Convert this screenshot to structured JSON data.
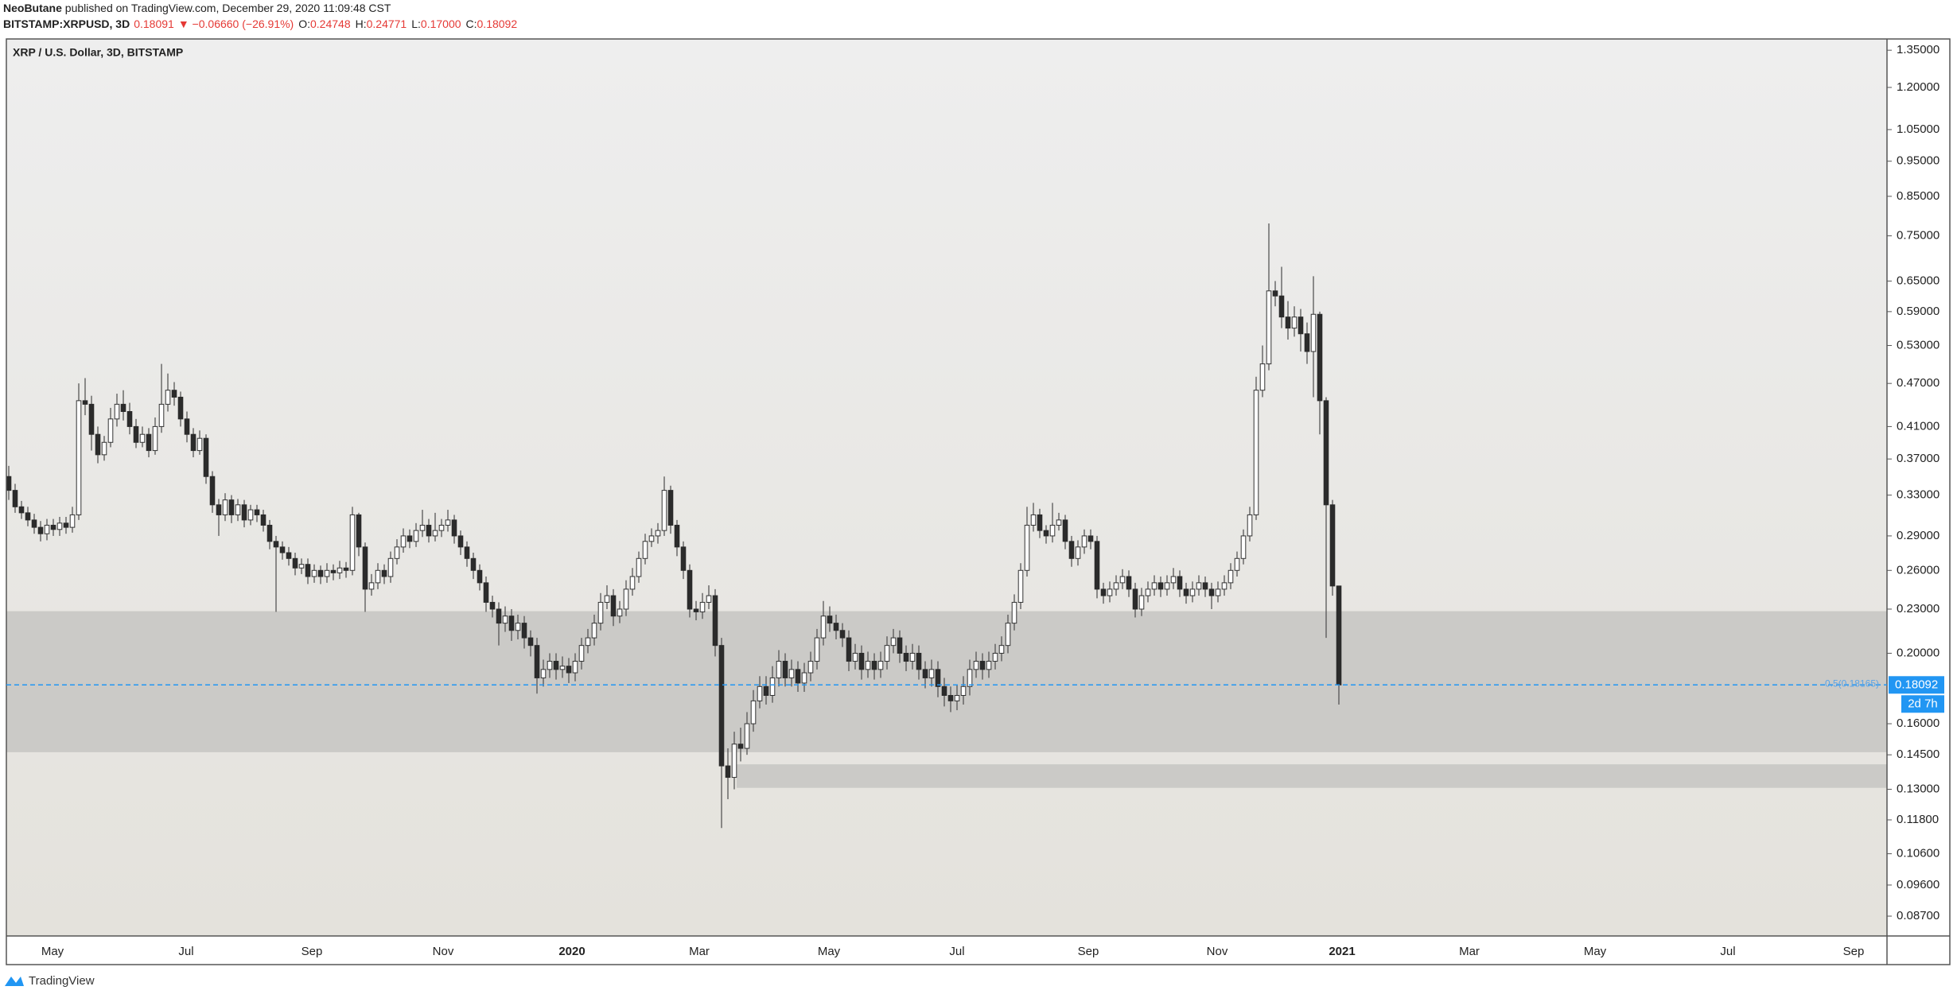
{
  "chart_data": {
    "type": "candlestick",
    "header": {
      "author": "NeoButane",
      "published": " published on TradingView.com, December 29, 2020 11:09:48 CST",
      "symbol": "BITSTAMP:XRPUSD, 3D",
      "price": "0.18091",
      "change": "▼ −0.06660 (−26.91%)",
      "ohlc": [
        {
          "k": "O:",
          "v": "0.24748"
        },
        {
          "k": "H:",
          "v": "0.24771"
        },
        {
          "k": "L:",
          "v": "0.17000"
        },
        {
          "k": "C:",
          "v": "0.18092"
        }
      ]
    },
    "title": "XRP / U.S. Dollar, 3D, BITSTAMP",
    "footer": "TradingView",
    "log_scale": true,
    "up_color": "#ffffff",
    "down_color": "#2b2b2b",
    "wick_color": "#4a4a4a",
    "zone_color": "#cbcac7",
    "ylim": [
      0.0817,
      1.399
    ],
    "yticks": [
      {
        "value": 1.35,
        "label": "1.35000"
      },
      {
        "value": 1.2,
        "label": "1.20000"
      },
      {
        "value": 1.05,
        "label": "1.05000"
      },
      {
        "value": 0.95,
        "label": "0.95000"
      },
      {
        "value": 0.85,
        "label": "0.85000"
      },
      {
        "value": 0.75,
        "label": "0.75000"
      },
      {
        "value": 0.65,
        "label": "0.65000"
      },
      {
        "value": 0.59,
        "label": "0.59000"
      },
      {
        "value": 0.53,
        "label": "0.53000"
      },
      {
        "value": 0.47,
        "label": "0.47000"
      },
      {
        "value": 0.41,
        "label": "0.41000"
      },
      {
        "value": 0.37,
        "label": "0.37000"
      },
      {
        "value": 0.33,
        "label": "0.33000"
      },
      {
        "value": 0.29,
        "label": "0.29000"
      },
      {
        "value": 0.26,
        "label": "0.26000"
      },
      {
        "value": 0.23,
        "label": "0.23000"
      },
      {
        "value": 0.2,
        "label": "0.20000"
      },
      {
        "value": 0.16,
        "label": "0.16000"
      },
      {
        "value": 0.145,
        "label": "0.14500"
      },
      {
        "value": 0.13,
        "label": "0.13000"
      },
      {
        "value": 0.118,
        "label": "0.11800"
      },
      {
        "value": 0.106,
        "label": "0.10600"
      },
      {
        "value": 0.096,
        "label": "0.09600"
      },
      {
        "value": 0.087,
        "label": "0.08700"
      }
    ],
    "x_labels": [
      "May",
      "Jul",
      "Sep",
      "Nov",
      "2020",
      "Mar",
      "May",
      "Jul",
      "Sep",
      "Nov",
      "2021",
      "Mar",
      "May",
      "Jul",
      "Sep"
    ],
    "zones": [
      {
        "top": 0.2285,
        "bottom": 0.1462
      },
      {
        "top": 0.1407,
        "bottom": 0.1306
      }
    ],
    "last_price": 0.18092,
    "countdown": "2d 7h",
    "fib_label": "0.5(0.18165)",
    "open": [
      0.35,
      0.335,
      0.318,
      0.312,
      0.305,
      0.298,
      0.292,
      0.3,
      0.296,
      0.302,
      0.298,
      0.31,
      0.445,
      0.44,
      0.4,
      0.375,
      0.39,
      0.42,
      0.44,
      0.43,
      0.41,
      0.39,
      0.4,
      0.38,
      0.41,
      0.44,
      0.46,
      0.45,
      0.42,
      0.4,
      0.38,
      0.395,
      0.35,
      0.32,
      0.31,
      0.325,
      0.31,
      0.32,
      0.305,
      0.315,
      0.31,
      0.3,
      0.285,
      0.28,
      0.275,
      0.27,
      0.262,
      0.265,
      0.255,
      0.26,
      0.255,
      0.26,
      0.258,
      0.262,
      0.26,
      0.31,
      0.28,
      0.245,
      0.25,
      0.26,
      0.255,
      0.27,
      0.28,
      0.29,
      0.285,
      0.295,
      0.3,
      0.29,
      0.295,
      0.3,
      0.305,
      0.29,
      0.28,
      0.27,
      0.26,
      0.25,
      0.235,
      0.23,
      0.22,
      0.225,
      0.215,
      0.22,
      0.21,
      0.205,
      0.185,
      0.19,
      0.195,
      0.19,
      0.192,
      0.188,
      0.195,
      0.205,
      0.21,
      0.22,
      0.235,
      0.24,
      0.225,
      0.23,
      0.245,
      0.255,
      0.27,
      0.285,
      0.29,
      0.295,
      0.335,
      0.3,
      0.28,
      0.26,
      0.23,
      0.228,
      0.235,
      0.24,
      0.205,
      0.14,
      0.135,
      0.15,
      0.148,
      0.16,
      0.172,
      0.18,
      0.175,
      0.185,
      0.195,
      0.185,
      0.19,
      0.182,
      0.188,
      0.195,
      0.21,
      0.225,
      0.22,
      0.215,
      0.21,
      0.195,
      0.2,
      0.19,
      0.195,
      0.19,
      0.195,
      0.205,
      0.21,
      0.2,
      0.195,
      0.2,
      0.19,
      0.185,
      0.19,
      0.18,
      0.175,
      0.172,
      0.175,
      0.18,
      0.19,
      0.195,
      0.19,
      0.195,
      0.2,
      0.205,
      0.22,
      0.235,
      0.26,
      0.3,
      0.31,
      0.295,
      0.29,
      0.3,
      0.305,
      0.285,
      0.27,
      0.28,
      0.29,
      0.285,
      0.245,
      0.24,
      0.245,
      0.25,
      0.255,
      0.245,
      0.23,
      0.24,
      0.245,
      0.25,
      0.245,
      0.25,
      0.255,
      0.245,
      0.24,
      0.245,
      0.25,
      0.245,
      0.24,
      0.245,
      0.25,
      0.26,
      0.27,
      0.29,
      0.31,
      0.46,
      0.5,
      0.63,
      0.62,
      0.58,
      0.56,
      0.58,
      0.55,
      0.52,
      0.585,
      0.445,
      0.32,
      0.24748
    ],
    "high": [
      0.362,
      0.342,
      0.324,
      0.318,
      0.311,
      0.304,
      0.306,
      0.306,
      0.308,
      0.308,
      0.318,
      0.47,
      0.478,
      0.452,
      0.41,
      0.398,
      0.435,
      0.455,
      0.46,
      0.442,
      0.42,
      0.41,
      0.408,
      0.422,
      0.5,
      0.485,
      0.472,
      0.458,
      0.43,
      0.408,
      0.405,
      0.4,
      0.356,
      0.326,
      0.332,
      0.33,
      0.326,
      0.325,
      0.32,
      0.32,
      0.315,
      0.305,
      0.29,
      0.285,
      0.28,
      0.275,
      0.27,
      0.27,
      0.265,
      0.264,
      0.266,
      0.265,
      0.268,
      0.267,
      0.318,
      0.312,
      0.284,
      0.257,
      0.266,
      0.265,
      0.276,
      0.287,
      0.297,
      0.296,
      0.302,
      0.315,
      0.306,
      0.312,
      0.306,
      0.315,
      0.31,
      0.295,
      0.285,
      0.275,
      0.265,
      0.255,
      0.24,
      0.235,
      0.232,
      0.23,
      0.226,
      0.225,
      0.215,
      0.21,
      0.196,
      0.2,
      0.2,
      0.198,
      0.197,
      0.2,
      0.21,
      0.216,
      0.226,
      0.242,
      0.248,
      0.245,
      0.236,
      0.252,
      0.262,
      0.276,
      0.292,
      0.297,
      0.302,
      0.35,
      0.34,
      0.305,
      0.285,
      0.265,
      0.236,
      0.242,
      0.248,
      0.245,
      0.21,
      0.148,
      0.156,
      0.158,
      0.166,
      0.178,
      0.186,
      0.186,
      0.192,
      0.202,
      0.2,
      0.196,
      0.195,
      0.194,
      0.201,
      0.216,
      0.236,
      0.232,
      0.226,
      0.22,
      0.215,
      0.206,
      0.205,
      0.201,
      0.2,
      0.201,
      0.211,
      0.216,
      0.215,
      0.205,
      0.206,
      0.205,
      0.195,
      0.196,
      0.195,
      0.185,
      0.18,
      0.181,
      0.186,
      0.196,
      0.201,
      0.2,
      0.201,
      0.206,
      0.211,
      0.226,
      0.241,
      0.266,
      0.318,
      0.322,
      0.316,
      0.3,
      0.322,
      0.312,
      0.31,
      0.29,
      0.286,
      0.296,
      0.296,
      0.29,
      0.25,
      0.251,
      0.256,
      0.261,
      0.26,
      0.25,
      0.246,
      0.251,
      0.256,
      0.255,
      0.256,
      0.262,
      0.26,
      0.25,
      0.251,
      0.256,
      0.255,
      0.25,
      0.251,
      0.256,
      0.266,
      0.276,
      0.296,
      0.318,
      0.48,
      0.53,
      0.78,
      0.65,
      0.68,
      0.61,
      0.6,
      0.595,
      0.57,
      0.66,
      0.59,
      0.45,
      0.325,
      0.24771
    ],
    "low": [
      0.325,
      0.312,
      0.306,
      0.299,
      0.292,
      0.285,
      0.286,
      0.29,
      0.29,
      0.292,
      0.293,
      0.305,
      0.425,
      0.38,
      0.365,
      0.368,
      0.384,
      0.41,
      0.418,
      0.4,
      0.383,
      0.384,
      0.372,
      0.375,
      0.402,
      0.43,
      0.438,
      0.41,
      0.39,
      0.372,
      0.375,
      0.342,
      0.312,
      0.29,
      0.304,
      0.302,
      0.304,
      0.298,
      0.3,
      0.303,
      0.294,
      0.278,
      0.228,
      0.269,
      0.264,
      0.256,
      0.257,
      0.249,
      0.25,
      0.249,
      0.25,
      0.252,
      0.253,
      0.254,
      0.256,
      0.272,
      0.228,
      0.24,
      0.245,
      0.249,
      0.25,
      0.265,
      0.275,
      0.279,
      0.28,
      0.289,
      0.284,
      0.285,
      0.289,
      0.294,
      0.283,
      0.273,
      0.263,
      0.253,
      0.244,
      0.228,
      0.224,
      0.205,
      0.214,
      0.208,
      0.209,
      0.203,
      0.198,
      0.176,
      0.18,
      0.185,
      0.184,
      0.185,
      0.182,
      0.183,
      0.19,
      0.2,
      0.205,
      0.215,
      0.23,
      0.218,
      0.22,
      0.225,
      0.24,
      0.25,
      0.265,
      0.28,
      0.283,
      0.29,
      0.292,
      0.272,
      0.253,
      0.224,
      0.222,
      0.223,
      0.23,
      0.198,
      0.115,
      0.126,
      0.13,
      0.142,
      0.145,
      0.156,
      0.168,
      0.17,
      0.171,
      0.18,
      0.18,
      0.18,
      0.177,
      0.177,
      0.183,
      0.19,
      0.205,
      0.214,
      0.209,
      0.204,
      0.189,
      0.19,
      0.184,
      0.185,
      0.184,
      0.185,
      0.19,
      0.2,
      0.194,
      0.189,
      0.19,
      0.184,
      0.179,
      0.18,
      0.174,
      0.169,
      0.166,
      0.167,
      0.17,
      0.175,
      0.185,
      0.184,
      0.185,
      0.19,
      0.195,
      0.2,
      0.215,
      0.23,
      0.255,
      0.294,
      0.288,
      0.283,
      0.284,
      0.295,
      0.278,
      0.263,
      0.264,
      0.274,
      0.278,
      0.238,
      0.234,
      0.235,
      0.24,
      0.245,
      0.239,
      0.224,
      0.225,
      0.235,
      0.24,
      0.239,
      0.24,
      0.245,
      0.239,
      0.234,
      0.235,
      0.24,
      0.239,
      0.23,
      0.235,
      0.24,
      0.245,
      0.255,
      0.265,
      0.285,
      0.305,
      0.45,
      0.49,
      0.6,
      0.56,
      0.54,
      0.545,
      0.52,
      0.5,
      0.45,
      0.4,
      0.21,
      0.24,
      0.17
    ],
    "close": [
      0.335,
      0.318,
      0.312,
      0.305,
      0.298,
      0.292,
      0.3,
      0.296,
      0.302,
      0.298,
      0.31,
      0.445,
      0.44,
      0.4,
      0.375,
      0.39,
      0.42,
      0.44,
      0.43,
      0.41,
      0.39,
      0.4,
      0.38,
      0.41,
      0.44,
      0.46,
      0.45,
      0.42,
      0.4,
      0.38,
      0.395,
      0.35,
      0.32,
      0.31,
      0.325,
      0.31,
      0.32,
      0.305,
      0.315,
      0.31,
      0.3,
      0.285,
      0.28,
      0.275,
      0.27,
      0.262,
      0.265,
      0.255,
      0.26,
      0.255,
      0.26,
      0.258,
      0.262,
      0.26,
      0.31,
      0.28,
      0.245,
      0.25,
      0.26,
      0.255,
      0.27,
      0.28,
      0.29,
      0.285,
      0.295,
      0.3,
      0.29,
      0.295,
      0.3,
      0.305,
      0.29,
      0.28,
      0.27,
      0.26,
      0.25,
      0.235,
      0.23,
      0.22,
      0.225,
      0.215,
      0.22,
      0.21,
      0.205,
      0.185,
      0.19,
      0.195,
      0.19,
      0.192,
      0.188,
      0.195,
      0.205,
      0.21,
      0.22,
      0.235,
      0.24,
      0.225,
      0.23,
      0.245,
      0.255,
      0.27,
      0.285,
      0.29,
      0.295,
      0.335,
      0.3,
      0.28,
      0.26,
      0.23,
      0.228,
      0.235,
      0.24,
      0.205,
      0.14,
      0.135,
      0.15,
      0.148,
      0.16,
      0.172,
      0.18,
      0.175,
      0.185,
      0.195,
      0.185,
      0.19,
      0.182,
      0.188,
      0.195,
      0.21,
      0.225,
      0.22,
      0.215,
      0.21,
      0.195,
      0.2,
      0.19,
      0.195,
      0.19,
      0.195,
      0.205,
      0.21,
      0.2,
      0.195,
      0.2,
      0.19,
      0.185,
      0.19,
      0.18,
      0.175,
      0.172,
      0.175,
      0.18,
      0.19,
      0.195,
      0.19,
      0.195,
      0.2,
      0.205,
      0.22,
      0.235,
      0.26,
      0.3,
      0.31,
      0.295,
      0.29,
      0.3,
      0.305,
      0.285,
      0.27,
      0.28,
      0.29,
      0.285,
      0.245,
      0.24,
      0.245,
      0.25,
      0.255,
      0.245,
      0.23,
      0.24,
      0.245,
      0.25,
      0.245,
      0.25,
      0.255,
      0.245,
      0.24,
      0.245,
      0.25,
      0.245,
      0.24,
      0.245,
      0.25,
      0.26,
      0.27,
      0.29,
      0.31,
      0.46,
      0.5,
      0.63,
      0.62,
      0.58,
      0.56,
      0.58,
      0.55,
      0.52,
      0.585,
      0.445,
      0.32,
      0.24748,
      0.18092
    ]
  }
}
